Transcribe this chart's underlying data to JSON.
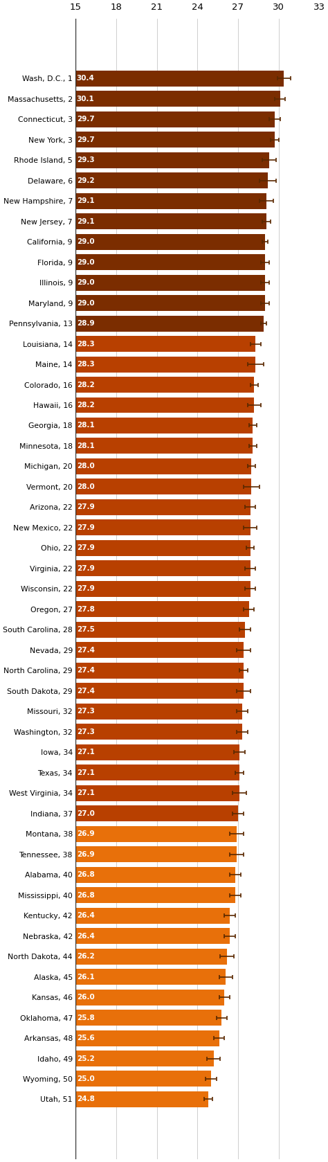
{
  "categories": [
    "Wash, D.C., 1",
    "Massachusetts, 2",
    "Connecticut, 3",
    "New York, 3",
    "Rhode Island, 5",
    "Delaware, 6",
    "New Hampshire, 7",
    "New Jersey, 7",
    "California, 9",
    "Florida, 9",
    "Illinois, 9",
    "Maryland, 9",
    "Pennsylvania, 13",
    "Louisiana, 14",
    "Maine, 14",
    "Colorado, 16",
    "Hawaii, 16",
    "Georgia, 18",
    "Minnesota, 18",
    "Michigan, 20",
    "Vermont, 20",
    "Arizona, 22",
    "New Mexico, 22",
    "Ohio, 22",
    "Virginia, 22",
    "Wisconsin, 22",
    "Oregon, 27",
    "South Carolina, 28",
    "Nevada, 29",
    "North Carolina, 29",
    "South Dakota, 29",
    "Missouri, 32",
    "Washington, 32",
    "Iowa, 34",
    "Texas, 34",
    "West Virginia, 34",
    "Indiana, 37",
    "Montana, 38",
    "Tennessee, 38",
    "Alabama, 40",
    "Mississippi, 40",
    "Kentucky, 42",
    "Nebraska, 42",
    "North Dakota, 44",
    "Alaska, 45",
    "Kansas, 46",
    "Oklahoma, 47",
    "Arkansas, 48",
    "Idaho, 49",
    "Wyoming, 50",
    "Utah, 51"
  ],
  "values": [
    30.4,
    30.1,
    29.7,
    29.7,
    29.3,
    29.2,
    29.1,
    29.1,
    29.0,
    29.0,
    29.0,
    29.0,
    28.9,
    28.3,
    28.3,
    28.2,
    28.2,
    28.1,
    28.1,
    28.0,
    28.0,
    27.9,
    27.9,
    27.9,
    27.9,
    27.9,
    27.8,
    27.5,
    27.4,
    27.4,
    27.4,
    27.3,
    27.3,
    27.1,
    27.1,
    27.1,
    27.0,
    26.9,
    26.9,
    26.8,
    26.8,
    26.4,
    26.4,
    26.2,
    26.1,
    26.0,
    25.8,
    25.6,
    25.2,
    25.0,
    24.8
  ],
  "error_bars": [
    0.5,
    0.4,
    0.4,
    0.3,
    0.5,
    0.6,
    0.5,
    0.3,
    0.2,
    0.3,
    0.3,
    0.3,
    0.2,
    0.4,
    0.6,
    0.3,
    0.5,
    0.3,
    0.3,
    0.3,
    0.6,
    0.4,
    0.5,
    0.3,
    0.4,
    0.4,
    0.4,
    0.4,
    0.5,
    0.3,
    0.5,
    0.4,
    0.4,
    0.4,
    0.3,
    0.5,
    0.4,
    0.5,
    0.5,
    0.4,
    0.4,
    0.4,
    0.4,
    0.5,
    0.5,
    0.4,
    0.4,
    0.4,
    0.5,
    0.4,
    0.3
  ],
  "bar_color_dark": "#7B2D00",
  "bar_color_medium": "#B84000",
  "bar_color_light": "#E8700A",
  "threshold1": 13,
  "threshold2": 37,
  "xlim_left": 15,
  "xlim_right": 33,
  "xticks": [
    15,
    18,
    21,
    24,
    27,
    30,
    33
  ],
  "bar_height": 0.78,
  "error_color": "#5a2800",
  "background_color": "#ffffff",
  "label_fontsize": 7.8,
  "value_fontsize": 7.5,
  "xtick_fontsize": 9.5
}
